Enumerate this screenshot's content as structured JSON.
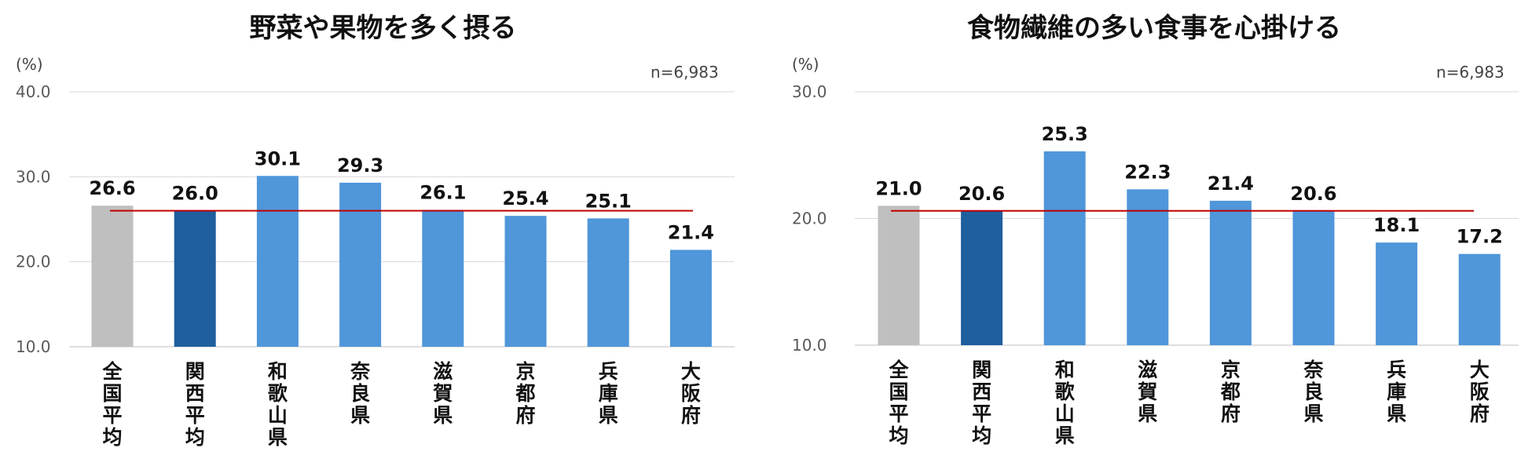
{
  "chart_data": [
    {
      "type": "bar",
      "title": "野菜や果物を多く摂る",
      "unit": "(%)",
      "sample": "n=6,983",
      "categories": [
        "全国平均",
        "関西平均",
        "和歌山県",
        "奈良県",
        "滋賀県",
        "京都府",
        "兵庫県",
        "大阪府"
      ],
      "values": [
        26.6,
        26.0,
        30.1,
        29.3,
        26.1,
        25.4,
        25.1,
        21.4
      ],
      "value_labels": [
        "26.6",
        "26.0",
        "30.1",
        "29.3",
        "26.1",
        "25.4",
        "25.1",
        "21.4"
      ],
      "reference_line": 26.0,
      "ylim": [
        10.0,
        40.0
      ],
      "yticks": [
        "10.0",
        "20.0",
        "30.0",
        "40.0"
      ],
      "grid": true,
      "bar_colors": [
        "#bfbfbf",
        "#1f5f9e",
        "#4f96da",
        "#4f96da",
        "#4f96da",
        "#4f96da",
        "#4f96da",
        "#4f96da"
      ],
      "line_color": "#c00000"
    },
    {
      "type": "bar",
      "title": "食物繊維の多い食事を心掛ける",
      "unit": "(%)",
      "sample": "n=6,983",
      "categories": [
        "全国平均",
        "関西平均",
        "和歌山県",
        "滋賀県",
        "京都府",
        "奈良県",
        "兵庫県",
        "大阪府"
      ],
      "values": [
        21.0,
        20.6,
        25.3,
        22.3,
        21.4,
        20.6,
        18.1,
        17.2
      ],
      "value_labels": [
        "21.0",
        "20.6",
        "25.3",
        "22.3",
        "21.4",
        "20.6",
        "18.1",
        "17.2"
      ],
      "reference_line": 20.6,
      "ylim": [
        10.0,
        30.0
      ],
      "yticks": [
        "10.0",
        "20.0",
        "30.0"
      ],
      "grid": true,
      "bar_colors": [
        "#bfbfbf",
        "#1f5f9e",
        "#4f96da",
        "#4f96da",
        "#4f96da",
        "#4f96da",
        "#4f96da",
        "#4f96da"
      ],
      "line_color": "#c00000"
    }
  ]
}
